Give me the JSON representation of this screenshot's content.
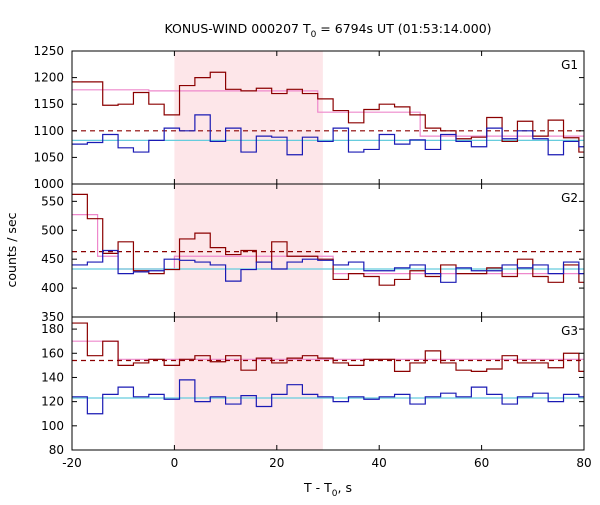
{
  "title_parts": {
    "main": "KONUS-WIND 000207 T",
    "sub": "0",
    "rest": " = 6794s UT (01:53:14.000)"
  },
  "xlabel_parts": {
    "main": "T - T",
    "sub": "0",
    "rest": ", s"
  },
  "ylabel": "counts / sec",
  "colors": {
    "dark_red": "#8b0000",
    "blue": "#1a1ab4",
    "pink": "#ee88cc",
    "light_blue": "#66ccdd",
    "highlight": "#fde6e9"
  },
  "chart_data": [
    {
      "type": "line",
      "panel": "G1",
      "xlim": [
        -20,
        80
      ],
      "ylim": [
        1000,
        1250
      ],
      "yticks": [
        1000,
        1050,
        1100,
        1150,
        1200,
        1250
      ],
      "xticks": [
        -20,
        0,
        20,
        40,
        60,
        80
      ],
      "highlight_interval": [
        0,
        29
      ],
      "dashed_level": 1100,
      "series": [
        {
          "role": "counts-dark",
          "x": [
            -20,
            -17,
            -14,
            -11,
            -8,
            -5,
            -2,
            1,
            4,
            7,
            10,
            13,
            16,
            19,
            22,
            25,
            28,
            31,
            34,
            37,
            40,
            43,
            46,
            49,
            52,
            55,
            58,
            61,
            64,
            67,
            70,
            73,
            76,
            79,
            80
          ],
          "y": [
            1192,
            1192,
            1148,
            1150,
            1172,
            1150,
            1130,
            1185,
            1200,
            1210,
            1178,
            1175,
            1180,
            1170,
            1178,
            1170,
            1160,
            1138,
            1115,
            1140,
            1150,
            1145,
            1130,
            1105,
            1100,
            1085,
            1088,
            1125,
            1080,
            1118,
            1090,
            1120,
            1087,
            1060,
            1045
          ]
        },
        {
          "role": "counts-blue",
          "x": [
            -20,
            -17,
            -14,
            -11,
            -8,
            -5,
            -2,
            1,
            4,
            7,
            10,
            13,
            16,
            19,
            22,
            25,
            28,
            31,
            34,
            37,
            40,
            43,
            46,
            49,
            52,
            55,
            58,
            61,
            64,
            67,
            70,
            73,
            76,
            79,
            80
          ],
          "y": [
            1075,
            1078,
            1093,
            1068,
            1060,
            1082,
            1105,
            1100,
            1130,
            1080,
            1105,
            1060,
            1090,
            1088,
            1055,
            1088,
            1080,
            1105,
            1060,
            1065,
            1093,
            1075,
            1083,
            1065,
            1093,
            1080,
            1070,
            1105,
            1085,
            1100,
            1085,
            1055,
            1080,
            1070,
            1080
          ]
        },
        {
          "role": "fit-pink",
          "x": [
            -20,
            -5,
            -5,
            28,
            28,
            48,
            48,
            80
          ],
          "y": [
            1177,
            1177,
            1175,
            1175,
            1135,
            1135,
            1090,
            1090
          ]
        },
        {
          "role": "fit-light-blue",
          "x": [
            -20,
            80
          ],
          "y": [
            1082,
            1082
          ]
        }
      ],
      "label": "G1"
    },
    {
      "type": "line",
      "panel": "G2",
      "xlim": [
        -20,
        80
      ],
      "ylim": [
        350,
        580
      ],
      "yticks": [
        350,
        400,
        450,
        500,
        550
      ],
      "xticks": [
        -20,
        0,
        20,
        40,
        60,
        80
      ],
      "highlight_interval": [
        0,
        29
      ],
      "dashed_level": 463,
      "series": [
        {
          "role": "counts-dark",
          "x": [
            -20,
            -17,
            -14,
            -11,
            -8,
            -5,
            -2,
            1,
            4,
            7,
            10,
            13,
            16,
            19,
            22,
            25,
            28,
            31,
            34,
            37,
            40,
            43,
            46,
            49,
            52,
            55,
            58,
            61,
            64,
            67,
            70,
            73,
            76,
            79,
            80
          ],
          "y": [
            562,
            520,
            460,
            480,
            430,
            425,
            432,
            485,
            495,
            470,
            458,
            465,
            445,
            480,
            455,
            455,
            450,
            415,
            425,
            420,
            405,
            415,
            430,
            420,
            440,
            425,
            425,
            435,
            420,
            450,
            420,
            410,
            440,
            410,
            420
          ]
        },
        {
          "role": "counts-blue",
          "x": [
            -20,
            -17,
            -14,
            -11,
            -8,
            -5,
            -2,
            1,
            4,
            7,
            10,
            13,
            16,
            19,
            22,
            25,
            28,
            31,
            34,
            37,
            40,
            43,
            46,
            49,
            52,
            55,
            58,
            61,
            64,
            67,
            70,
            73,
            76,
            79,
            80
          ],
          "y": [
            440,
            445,
            465,
            425,
            428,
            430,
            450,
            448,
            445,
            440,
            412,
            432,
            445,
            433,
            445,
            450,
            448,
            440,
            445,
            430,
            430,
            435,
            440,
            425,
            410,
            435,
            430,
            430,
            440,
            435,
            440,
            425,
            445,
            425,
            432
          ]
        },
        {
          "role": "fit-pink",
          "x": [
            -20,
            -15,
            -15,
            -11,
            -11,
            0,
            0,
            31,
            31,
            80
          ],
          "y": [
            527,
            527,
            455,
            455,
            433,
            433,
            455,
            455,
            425,
            425
          ]
        },
        {
          "role": "fit-light-blue",
          "x": [
            -20,
            80
          ],
          "y": [
            433,
            433
          ]
        }
      ],
      "label": "G2"
    },
    {
      "type": "line",
      "panel": "G3",
      "xlim": [
        -20,
        80
      ],
      "ylim": [
        80,
        190
      ],
      "yticks": [
        80,
        100,
        120,
        140,
        160,
        180
      ],
      "xticks": [
        -20,
        0,
        20,
        40,
        60,
        80
      ],
      "xticklabels": [
        "-20",
        "0",
        "20",
        "40",
        "60",
        "80"
      ],
      "highlight_interval": [
        0,
        29
      ],
      "dashed_level": 154,
      "series": [
        {
          "role": "counts-dark",
          "x": [
            -20,
            -17,
            -14,
            -11,
            -8,
            -5,
            -2,
            1,
            4,
            7,
            10,
            13,
            16,
            19,
            22,
            25,
            28,
            31,
            34,
            37,
            40,
            43,
            46,
            49,
            52,
            55,
            58,
            61,
            64,
            67,
            70,
            73,
            76,
            79,
            80
          ],
          "y": [
            185,
            158,
            170,
            150,
            152,
            155,
            150,
            155,
            158,
            153,
            158,
            146,
            156,
            152,
            156,
            158,
            156,
            152,
            150,
            155,
            155,
            145,
            152,
            162,
            152,
            146,
            145,
            147,
            158,
            152,
            152,
            148,
            160,
            145,
            160
          ]
        },
        {
          "role": "counts-blue",
          "x": [
            -20,
            -17,
            -14,
            -11,
            -8,
            -5,
            -2,
            1,
            4,
            7,
            10,
            13,
            16,
            19,
            22,
            25,
            28,
            31,
            34,
            37,
            40,
            43,
            46,
            49,
            52,
            55,
            58,
            61,
            64,
            67,
            70,
            73,
            76,
            79,
            80
          ],
          "y": [
            124,
            110,
            126,
            132,
            124,
            126,
            122,
            138,
            120,
            124,
            118,
            125,
            116,
            126,
            134,
            126,
            124,
            120,
            124,
            122,
            124,
            126,
            118,
            124,
            127,
            124,
            132,
            126,
            118,
            124,
            127,
            120,
            126,
            124,
            124
          ]
        },
        {
          "role": "fit-pink",
          "x": [
            -20,
            -11,
            -11,
            80
          ],
          "y": [
            170,
            170,
            155,
            155
          ]
        },
        {
          "role": "fit-light-blue",
          "x": [
            -20,
            80
          ],
          "y": [
            123,
            123
          ]
        }
      ],
      "label": "G3"
    }
  ]
}
